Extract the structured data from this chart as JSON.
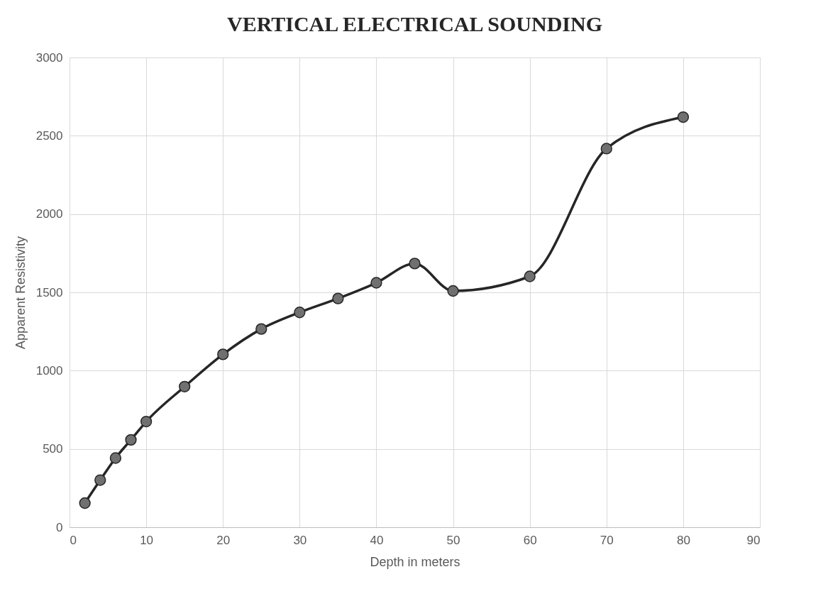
{
  "chart_data": {
    "type": "line",
    "title": "VERTICAL ELECTRICAL SOUNDING",
    "xlabel": "Depth in meters",
    "ylabel": "Apparent Resistivity",
    "x": [
      2,
      4,
      6,
      8,
      10,
      15,
      20,
      25,
      30,
      35,
      40,
      45,
      50,
      60,
      70,
      80
    ],
    "series": [
      {
        "color": "#262626",
        "values": [
          154,
          301,
          442,
          558,
          675,
          898,
          1104,
          1266,
          1372,
          1461,
          1561,
          1684,
          1509,
          1602,
          2418,
          2619
        ]
      }
    ],
    "xlim": [
      0,
      90
    ],
    "xticks": [
      0,
      10,
      20,
      30,
      40,
      50,
      60,
      70,
      80,
      90
    ],
    "ylim": [
      0,
      3000
    ],
    "yticks": [
      0,
      500,
      1000,
      1500,
      2000,
      2500,
      3000
    ],
    "grid": true,
    "marker": "circle",
    "line_style": "solid"
  }
}
